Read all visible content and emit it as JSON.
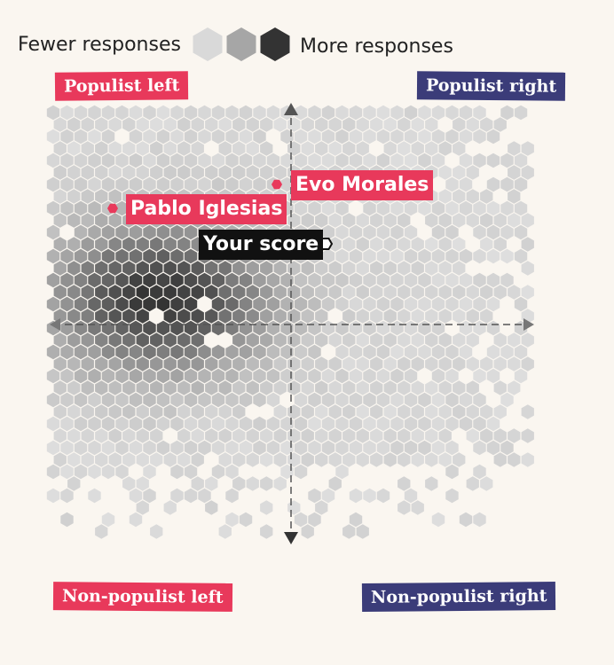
{
  "legend": {
    "fewer_label": "Fewer responses",
    "more_label": "More responses",
    "scale_colors": [
      "#d9d9d9",
      "#a6a6a6",
      "#333333"
    ]
  },
  "quadrants": {
    "top_left": "Populist left",
    "top_right": "Populist right",
    "bottom_left": "Non-populist left",
    "bottom_right": "Non-populist right"
  },
  "colors": {
    "populist_red": "#e8395b",
    "navy": "#3b3c79",
    "background": "#faf6f0",
    "axis": "#555555"
  },
  "chart_data": {
    "type": "heatmap",
    "description_axes": {
      "x": "left ↔ right",
      "y": "non-populist ↔ populist"
    },
    "xlim": [
      -1,
      1
    ],
    "ylim": [
      -1,
      1
    ],
    "grid": false,
    "density_scale": {
      "min_label": "Fewer responses",
      "max_label": "More responses"
    },
    "density_peak": {
      "x": -0.55,
      "y": 0.12
    },
    "markers": [
      {
        "label": "Evo Morales",
        "x": -0.05,
        "y": 0.6,
        "color": "#e8395b"
      },
      {
        "label": "Pablo Iglesias",
        "x": -0.75,
        "y": 0.52,
        "color": "#e8395b"
      },
      {
        "label": "Your score",
        "x": 0.15,
        "y": 0.36,
        "color": "#111111"
      }
    ]
  }
}
